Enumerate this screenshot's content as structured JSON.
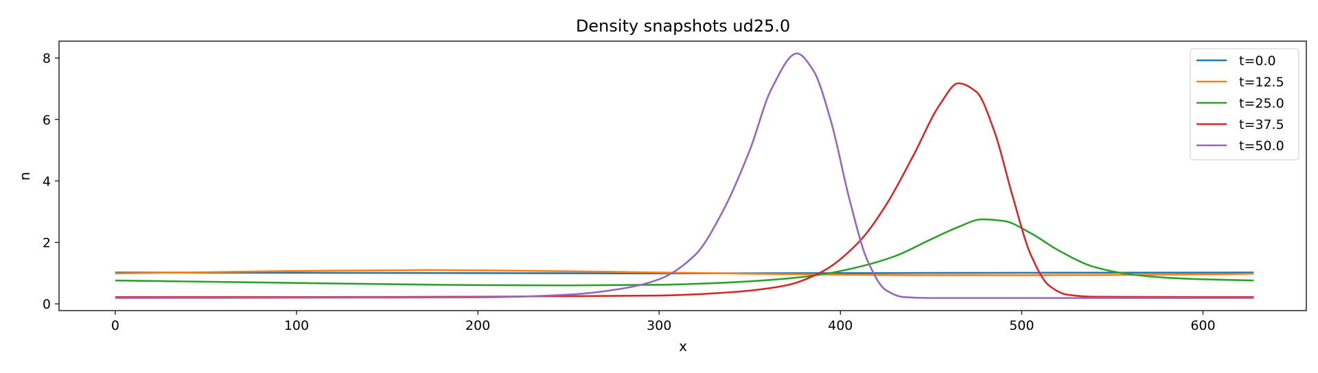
{
  "chart_data": {
    "type": "line",
    "title": "Density snapshots  ud25.0",
    "xlabel": "x",
    "ylabel": "n",
    "xlim": [
      -31,
      657
    ],
    "ylim": [
      -0.22,
      8.55
    ],
    "xticks": [
      0,
      100,
      200,
      300,
      400,
      500,
      600
    ],
    "yticks": [
      0,
      2,
      4,
      6,
      8
    ],
    "grid": false,
    "legend_position": "top-right",
    "series": [
      {
        "name": "t=0.0",
        "color": "#1f77b4",
        "x": [
          0,
          100,
          200,
          300,
          400,
          500,
          628
        ],
        "y": [
          1.02,
          1.01,
          1.0,
          0.99,
          1.0,
          1.01,
          1.02
        ]
      },
      {
        "name": "t=12.5",
        "color": "#ff7f0e",
        "x": [
          0,
          50,
          100,
          150,
          175,
          200,
          250,
          300,
          350,
          400,
          450,
          500,
          550,
          600,
          628
        ],
        "y": [
          0.99,
          1.03,
          1.07,
          1.09,
          1.1,
          1.09,
          1.06,
          1.02,
          0.98,
          0.95,
          0.93,
          0.93,
          0.94,
          0.96,
          0.98
        ]
      },
      {
        "name": "t=25.0",
        "color": "#2ca02c",
        "x": [
          0,
          50,
          100,
          150,
          200,
          250,
          300,
          340,
          370,
          390,
          410,
          430,
          450,
          465,
          478,
          490,
          505,
          520,
          540,
          560,
          580,
          600,
          628
        ],
        "y": [
          0.76,
          0.72,
          0.68,
          0.64,
          0.61,
          0.6,
          0.62,
          0.7,
          0.82,
          0.96,
          1.2,
          1.55,
          2.1,
          2.5,
          2.75,
          2.7,
          2.3,
          1.75,
          1.2,
          0.96,
          0.85,
          0.8,
          0.76
        ]
      },
      {
        "name": "t=37.5",
        "color": "#d62728",
        "x": [
          0,
          100,
          200,
          300,
          340,
          370,
          390,
          410,
          425,
          440,
          455,
          465,
          475,
          485,
          495,
          505,
          515,
          525,
          540,
          600,
          628
        ],
        "y": [
          0.22,
          0.22,
          0.23,
          0.27,
          0.38,
          0.6,
          1.05,
          2.0,
          3.2,
          4.8,
          6.5,
          7.18,
          6.9,
          5.6,
          3.5,
          1.6,
          0.6,
          0.3,
          0.23,
          0.22,
          0.22
        ]
      },
      {
        "name": "t=50.0",
        "color": "#9467bd",
        "x": [
          0,
          100,
          200,
          250,
          280,
          300,
          320,
          335,
          350,
          362,
          376,
          385,
          395,
          405,
          415,
          425,
          435,
          450,
          500,
          600,
          628
        ],
        "y": [
          0.19,
          0.2,
          0.21,
          0.3,
          0.5,
          0.8,
          1.6,
          3.0,
          5.0,
          7.0,
          8.15,
          7.6,
          5.9,
          3.4,
          1.4,
          0.45,
          0.22,
          0.19,
          0.19,
          0.19,
          0.19
        ]
      }
    ]
  }
}
